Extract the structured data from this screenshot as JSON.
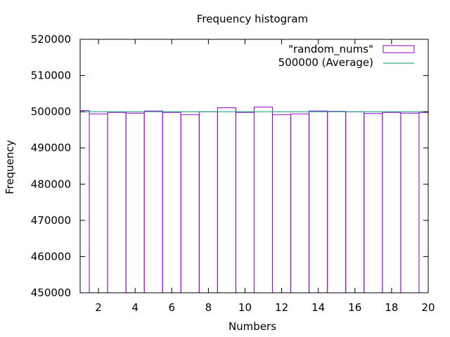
{
  "chart_data": {
    "type": "bar",
    "title": "Frequency histogram",
    "xlabel": "Numbers",
    "ylabel": "Frequency",
    "xlim": [
      1,
      20
    ],
    "ylim": [
      450000,
      520000
    ],
    "x_ticks": [
      2,
      4,
      6,
      8,
      10,
      12,
      14,
      16,
      18,
      20
    ],
    "y_ticks": [
      450000,
      460000,
      470000,
      480000,
      490000,
      500000,
      510000,
      520000
    ],
    "grid": false,
    "legend_position": "top-right",
    "bar_width": 1,
    "x": [
      1,
      2,
      3,
      4,
      5,
      6,
      7,
      8,
      9,
      10,
      11,
      12,
      13,
      14,
      15,
      16,
      17,
      18,
      19,
      20
    ],
    "series": [
      {
        "name": "\"random_nums\"",
        "style": "histogram",
        "color": "#9400d3",
        "values": [
          500300,
          499400,
          499800,
          499600,
          500200,
          499800,
          499200,
          500000,
          501100,
          499800,
          501300,
          499200,
          499400,
          500200,
          500100,
          500000,
          499500,
          499800,
          499600,
          499800
        ]
      },
      {
        "name": "500000 (Average)",
        "style": "line",
        "color": "#009e73",
        "constant": 500000
      }
    ]
  }
}
